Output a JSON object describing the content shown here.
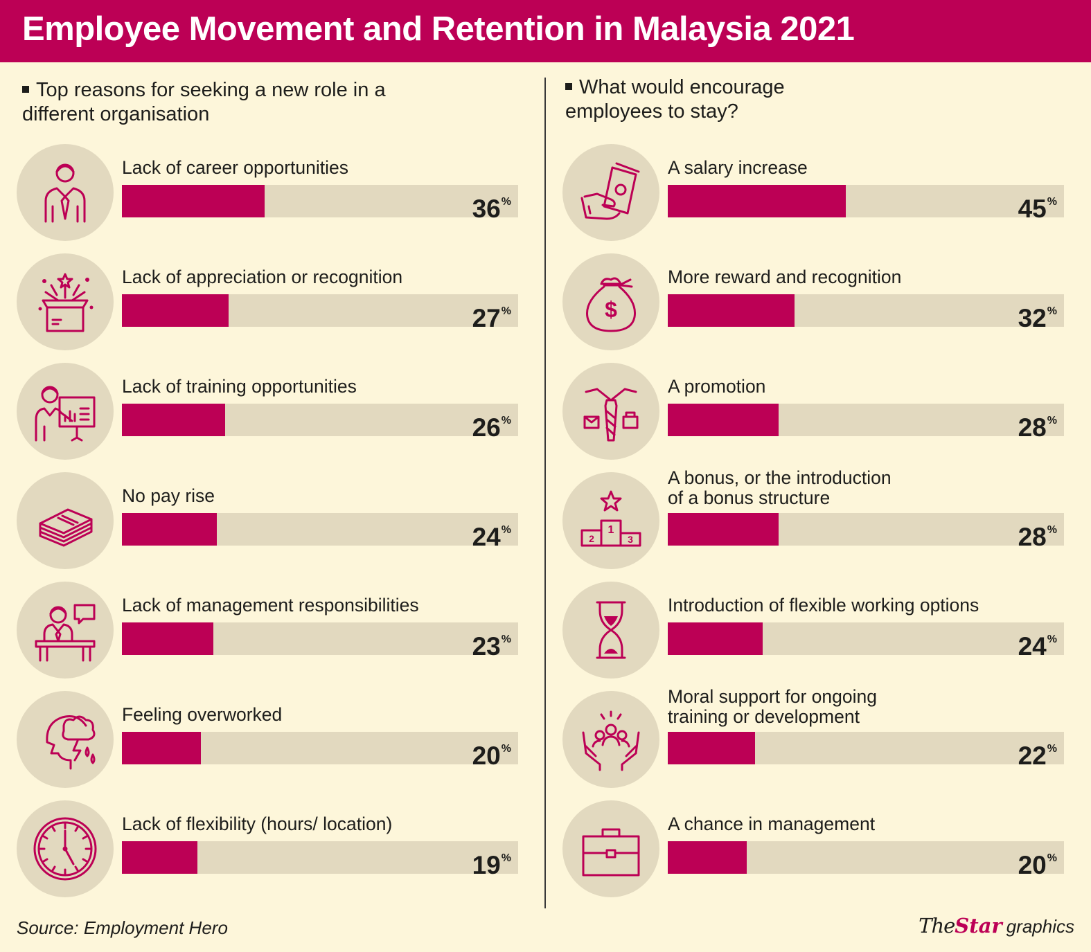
{
  "title": "Employee Movement and Retention in Malaysia 2021",
  "left_section": {
    "title_line1": "Top reasons for seeking a new role in a",
    "title_line2": "different organisation"
  },
  "right_section": {
    "title_line1": "What would encourage",
    "title_line2": "employees to stay?"
  },
  "percent_sign": "%",
  "source": "Source: Employment Hero",
  "brand": {
    "the": "The",
    "star": "Star",
    "graphics": "graphics"
  },
  "colors": {
    "accent": "#bc0055",
    "track": "#e2d9bf",
    "background": "#fdf6da"
  },
  "chart_data": [
    {
      "type": "bar",
      "orientation": "horizontal",
      "title": "Top reasons for seeking a new role in a different organisation",
      "unit": "%",
      "xlim": [
        0,
        100
      ],
      "items": [
        {
          "label": "Lack of career opportunities",
          "value": 36,
          "icon": "businessman-icon"
        },
        {
          "label": "Lack of appreciation or recognition",
          "value": 27,
          "icon": "gift-box-icon"
        },
        {
          "label": "Lack of training opportunities",
          "value": 26,
          "icon": "presentation-icon"
        },
        {
          "label": "No pay rise",
          "value": 24,
          "icon": "cash-stack-icon"
        },
        {
          "label": "Lack of management responsibilities",
          "value": 23,
          "icon": "manager-desk-icon"
        },
        {
          "label": "Feeling overworked",
          "value": 20,
          "icon": "stressed-head-icon"
        },
        {
          "label": "Lack of flexibility (hours/ location)",
          "value": 19,
          "icon": "clock-icon"
        }
      ]
    },
    {
      "type": "bar",
      "orientation": "horizontal",
      "title": "What would encourage employees to stay?",
      "unit": "%",
      "xlim": [
        0,
        100
      ],
      "items": [
        {
          "label": "A salary increase",
          "value": 45,
          "icon": "money-hand-icon"
        },
        {
          "label": "More reward and recognition",
          "value": 32,
          "icon": "money-bag-icon"
        },
        {
          "label": "A promotion",
          "value": 28,
          "icon": "tie-promotion-icon"
        },
        {
          "label": "A bonus, or the introduction\nof a bonus structure",
          "value": 28,
          "icon": "podium-icon"
        },
        {
          "label": "Introduction of flexible working options",
          "value": 24,
          "icon": "hourglass-icon"
        },
        {
          "label": "Moral support for ongoing\ntraining or development",
          "value": 22,
          "icon": "support-hands-icon"
        },
        {
          "label": "A chance in management",
          "value": 20,
          "icon": "briefcase-icon"
        }
      ]
    }
  ]
}
